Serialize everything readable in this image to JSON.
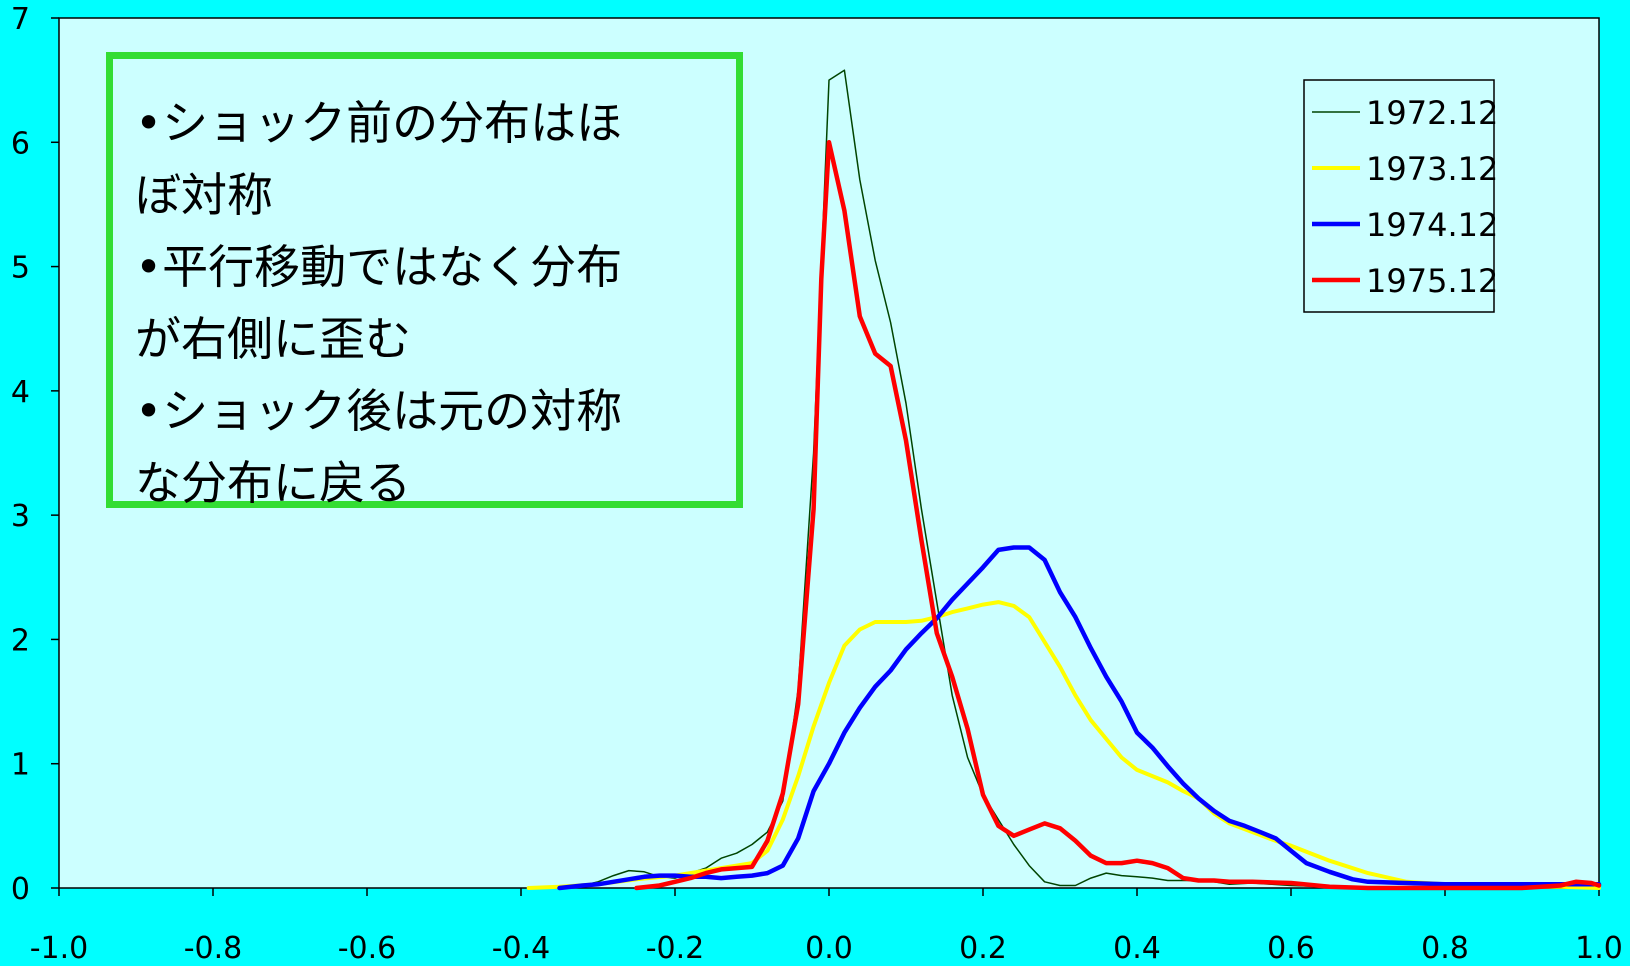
{
  "chart_data": {
    "type": "line",
    "xlim": [
      -1.0,
      1.0
    ],
    "ylim": [
      0,
      7
    ],
    "x_ticks": [
      "-1.0",
      "-0.8",
      "-0.6",
      "-0.4",
      "-0.2",
      "0.0",
      "0.2",
      "0.4",
      "0.6",
      "0.8",
      "1.0"
    ],
    "y_ticks": [
      "0",
      "1",
      "2",
      "3",
      "4",
      "5",
      "6",
      "7"
    ],
    "grid": false,
    "legend_position": "top-right",
    "plot_background": "#ccffff",
    "page_background": "#00ffff",
    "series": [
      {
        "name": "1972.12",
        "color": "#004400",
        "stroke_width": 1.5,
        "x": [
          -0.35,
          -0.32,
          -0.3,
          -0.28,
          -0.26,
          -0.24,
          -0.22,
          -0.2,
          -0.18,
          -0.16,
          -0.14,
          -0.12,
          -0.1,
          -0.08,
          -0.06,
          -0.04,
          -0.02,
          0.0,
          0.02,
          0.04,
          0.06,
          0.08,
          0.1,
          0.12,
          0.14,
          0.16,
          0.18,
          0.2,
          0.22,
          0.24,
          0.26,
          0.28,
          0.3,
          0.32,
          0.34,
          0.36,
          0.38,
          0.4,
          0.42,
          0.44,
          0.46,
          0.48,
          0.5,
          0.52,
          0.55,
          0.6,
          0.65,
          0.7,
          0.75,
          0.8,
          0.9,
          1.0
        ],
        "y": [
          0.0,
          0.02,
          0.05,
          0.1,
          0.14,
          0.13,
          0.09,
          0.08,
          0.12,
          0.16,
          0.24,
          0.28,
          0.35,
          0.45,
          0.7,
          1.6,
          3.5,
          6.5,
          6.58,
          5.7,
          5.05,
          4.55,
          3.9,
          3.05,
          2.3,
          1.55,
          1.05,
          0.75,
          0.55,
          0.35,
          0.18,
          0.05,
          0.02,
          0.02,
          0.08,
          0.12,
          0.1,
          0.09,
          0.08,
          0.06,
          0.06,
          0.06,
          0.05,
          0.03,
          0.04,
          0.02,
          0.01,
          0.01,
          0.0,
          0.0,
          0.0,
          0.0
        ]
      },
      {
        "name": "1973.12",
        "color": "#ffff00",
        "stroke_width": 4,
        "x": [
          -0.39,
          -0.35,
          -0.3,
          -0.25,
          -0.2,
          -0.15,
          -0.1,
          -0.08,
          -0.06,
          -0.04,
          -0.02,
          0.0,
          0.02,
          0.04,
          0.06,
          0.08,
          0.1,
          0.12,
          0.14,
          0.16,
          0.18,
          0.2,
          0.22,
          0.24,
          0.26,
          0.28,
          0.3,
          0.32,
          0.34,
          0.36,
          0.38,
          0.4,
          0.42,
          0.44,
          0.46,
          0.48,
          0.5,
          0.52,
          0.55,
          0.58,
          0.6,
          0.65,
          0.7,
          0.75,
          0.8,
          0.85,
          0.9,
          0.95,
          1.0
        ],
        "y": [
          0.0,
          0.01,
          0.03,
          0.07,
          0.1,
          0.15,
          0.2,
          0.3,
          0.55,
          0.9,
          1.3,
          1.65,
          1.95,
          2.08,
          2.14,
          2.14,
          2.14,
          2.15,
          2.18,
          2.22,
          2.25,
          2.28,
          2.3,
          2.27,
          2.18,
          1.98,
          1.78,
          1.55,
          1.35,
          1.2,
          1.05,
          0.95,
          0.9,
          0.85,
          0.78,
          0.72,
          0.6,
          0.52,
          0.45,
          0.38,
          0.34,
          0.22,
          0.12,
          0.05,
          0.03,
          0.02,
          0.01,
          0.01,
          0.0
        ]
      },
      {
        "name": "1974.12",
        "color": "#0000ff",
        "stroke_width": 4.5,
        "x": [
          -0.35,
          -0.32,
          -0.3,
          -0.28,
          -0.26,
          -0.24,
          -0.22,
          -0.2,
          -0.18,
          -0.16,
          -0.14,
          -0.12,
          -0.1,
          -0.08,
          -0.06,
          -0.04,
          -0.02,
          0.0,
          0.02,
          0.04,
          0.06,
          0.08,
          0.1,
          0.12,
          0.14,
          0.16,
          0.18,
          0.2,
          0.22,
          0.24,
          0.26,
          0.28,
          0.3,
          0.32,
          0.34,
          0.36,
          0.38,
          0.4,
          0.42,
          0.44,
          0.46,
          0.48,
          0.5,
          0.52,
          0.54,
          0.56,
          0.58,
          0.6,
          0.62,
          0.65,
          0.68,
          0.7,
          0.75,
          0.8,
          0.85,
          0.9,
          0.95,
          1.0
        ],
        "y": [
          0.0,
          0.02,
          0.03,
          0.05,
          0.07,
          0.09,
          0.1,
          0.1,
          0.09,
          0.09,
          0.08,
          0.09,
          0.1,
          0.12,
          0.18,
          0.4,
          0.78,
          1.0,
          1.25,
          1.45,
          1.62,
          1.75,
          1.92,
          2.05,
          2.17,
          2.32,
          2.45,
          2.58,
          2.72,
          2.74,
          2.74,
          2.64,
          2.38,
          2.18,
          1.93,
          1.7,
          1.5,
          1.25,
          1.13,
          0.98,
          0.84,
          0.72,
          0.62,
          0.54,
          0.5,
          0.45,
          0.4,
          0.3,
          0.2,
          0.13,
          0.07,
          0.05,
          0.04,
          0.03,
          0.03,
          0.03,
          0.03,
          0.03
        ]
      },
      {
        "name": "1975.12",
        "color": "#ff0000",
        "stroke_width": 4.5,
        "x": [
          -0.25,
          -0.22,
          -0.2,
          -0.18,
          -0.16,
          -0.14,
          -0.12,
          -0.1,
          -0.08,
          -0.06,
          -0.04,
          -0.02,
          -0.01,
          0.0,
          0.02,
          0.04,
          0.06,
          0.08,
          0.1,
          0.12,
          0.14,
          0.16,
          0.18,
          0.2,
          0.22,
          0.24,
          0.26,
          0.28,
          0.3,
          0.32,
          0.34,
          0.36,
          0.38,
          0.4,
          0.42,
          0.44,
          0.46,
          0.48,
          0.5,
          0.52,
          0.55,
          0.6,
          0.65,
          0.7,
          0.75,
          0.8,
          0.85,
          0.9,
          0.95,
          0.97,
          0.99,
          1.0
        ],
        "y": [
          0.0,
          0.02,
          0.05,
          0.08,
          0.12,
          0.15,
          0.16,
          0.17,
          0.38,
          0.76,
          1.48,
          3.05,
          4.9,
          6.0,
          5.45,
          4.6,
          4.3,
          4.2,
          3.6,
          2.8,
          2.05,
          1.7,
          1.28,
          0.75,
          0.5,
          0.42,
          0.47,
          0.52,
          0.48,
          0.38,
          0.26,
          0.2,
          0.2,
          0.22,
          0.2,
          0.16,
          0.08,
          0.06,
          0.06,
          0.05,
          0.05,
          0.04,
          0.01,
          0.0,
          0.0,
          0.0,
          0.0,
          0.0,
          0.02,
          0.05,
          0.04,
          0.02
        ]
      }
    ],
    "annotation": {
      "border_color": "#33dd33",
      "lines": [
        "•ショック前の分布はほ",
        "ぼ対称",
        "•平行移動ではなく分布",
        "が右側に歪む",
        "•ショック後は元の対称",
        "な分布に戻る"
      ]
    }
  }
}
